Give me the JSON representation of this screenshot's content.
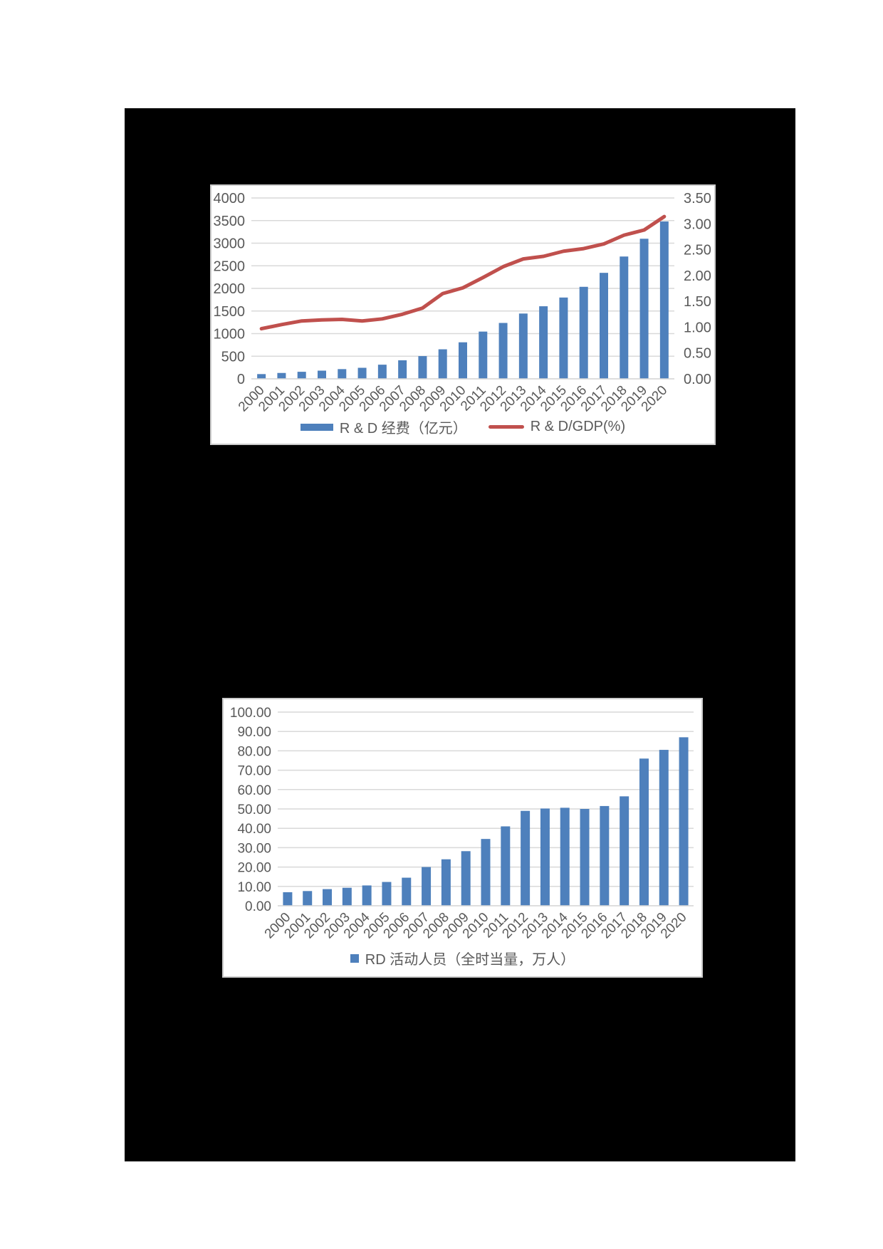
{
  "colors": {
    "bar": "#4e80bc",
    "line": "#c0504d",
    "tick_text": "#595959",
    "gridline": "#d9d9d9",
    "page_background": "#000000",
    "chart_background": "#ffffff"
  },
  "chart_data": [
    {
      "id": "rd-expenditure-gdp",
      "type": "bar",
      "categories": [
        "2000",
        "2001",
        "2002",
        "2003",
        "2004",
        "2005",
        "2006",
        "2007",
        "2008",
        "2009",
        "2010",
        "2011",
        "2012",
        "2013",
        "2014",
        "2015",
        "2016",
        "2017",
        "2018",
        "2019",
        "2020"
      ],
      "series": [
        {
          "name": "R & D 经费（亿元）",
          "type": "bar",
          "axis": "left",
          "values": [
            105,
            130,
            156,
            181,
            215,
            244,
            313,
            410,
            503,
            653,
            808,
            1045,
            1236,
            1444,
            1605,
            1798,
            2035,
            2344,
            2705,
            3098,
            3480
          ]
        },
        {
          "name": "R & D/GDP(%)",
          "type": "line",
          "axis": "right",
          "values": [
            0.97,
            1.05,
            1.12,
            1.14,
            1.15,
            1.12,
            1.16,
            1.25,
            1.37,
            1.65,
            1.76,
            1.96,
            2.17,
            2.32,
            2.37,
            2.47,
            2.52,
            2.61,
            2.78,
            2.88,
            3.14
          ]
        }
      ],
      "left_axis": {
        "min": 0,
        "max": 4000,
        "step": 500,
        "labels": [
          "4000",
          "3500",
          "3000",
          "2500",
          "2000",
          "1500",
          "1000",
          "500",
          "0"
        ]
      },
      "right_axis": {
        "min": 0,
        "max": 3.5,
        "step": 0.5,
        "labels": [
          "3.50",
          "3.00",
          "2.50",
          "2.00",
          "1.50",
          "1.00",
          "0.50",
          "0.00"
        ]
      },
      "grid": true,
      "legend_position": "bottom",
      "legend": [
        {
          "swatch": "bar",
          "label": "R & D 经费（亿元）"
        },
        {
          "swatch": "line",
          "label": "R & D/GDP(%)"
        }
      ]
    },
    {
      "id": "rd-personnel",
      "type": "bar",
      "categories": [
        "2000",
        "2001",
        "2002",
        "2003",
        "2004",
        "2005",
        "2006",
        "2007",
        "2008",
        "2009",
        "2010",
        "2011",
        "2012",
        "2013",
        "2014",
        "2015",
        "2016",
        "2017",
        "2018",
        "2019",
        "2020"
      ],
      "series": [
        {
          "name": "RD 活动人员（全时当量，万人）",
          "type": "bar",
          "axis": "left",
          "values": [
            7.0,
            7.6,
            8.6,
            9.3,
            10.5,
            12.3,
            14.5,
            20.0,
            24.0,
            28.2,
            34.5,
            41.0,
            49.0,
            50.2,
            50.6,
            50.0,
            51.5,
            56.5,
            76.0,
            80.5,
            87.0
          ]
        }
      ],
      "left_axis": {
        "min": 0,
        "max": 100,
        "step": 10,
        "labels": [
          "100.00",
          "90.00",
          "80.00",
          "70.00",
          "60.00",
          "50.00",
          "40.00",
          "30.00",
          "20.00",
          "10.00",
          "0.00"
        ]
      },
      "grid": true,
      "legend_position": "bottom",
      "legend": [
        {
          "swatch": "square",
          "label": "RD 活动人员（全时当量，万人）"
        }
      ]
    }
  ]
}
